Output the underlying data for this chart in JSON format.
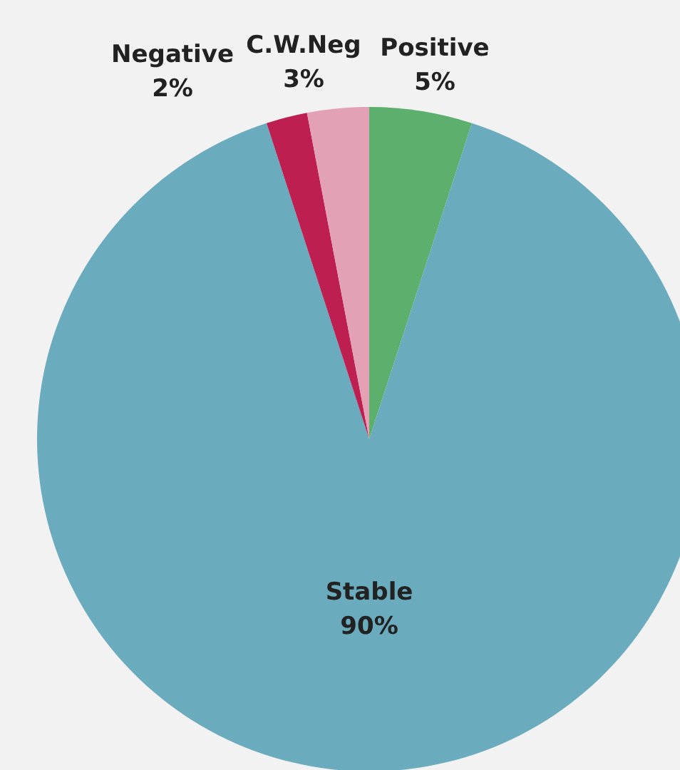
{
  "chart_data": {
    "type": "pie",
    "categories": [
      "Positive",
      "Stable",
      "Negative",
      "C.W.Neg"
    ],
    "values": [
      5,
      90,
      2,
      3
    ],
    "colors": [
      "#5daf6e",
      "#6aabbd",
      "#be1f51",
      "#e3a1b5"
    ],
    "value_labels": [
      "5%",
      "90%",
      "2%",
      "3%"
    ],
    "legend": false
  }
}
